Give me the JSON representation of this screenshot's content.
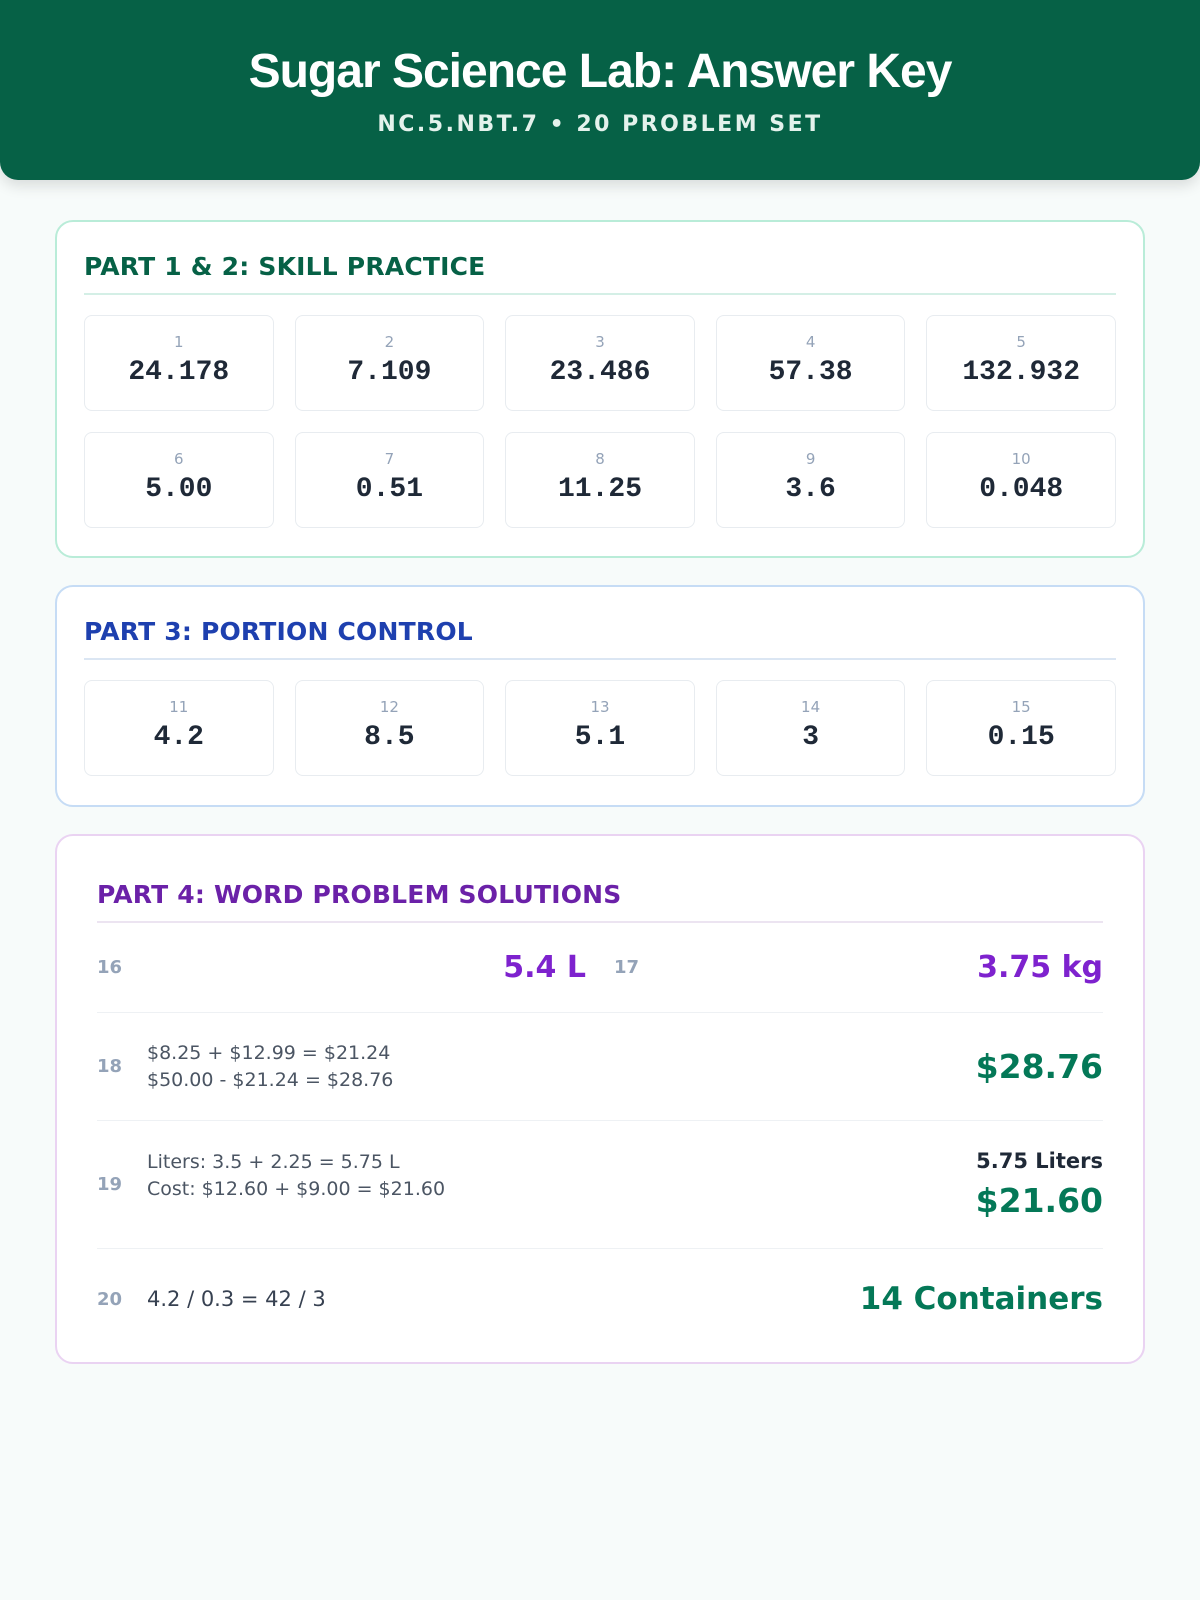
{
  "header": {
    "title": "Sugar Science Lab: Answer Key",
    "subtitle": "NC.5.NBT.7 • 20 PROBLEM SET"
  },
  "part12": {
    "title": "PART 1 & 2: SKILL PRACTICE",
    "items": [
      {
        "num": "1",
        "answer": "24.178"
      },
      {
        "num": "2",
        "answer": "7.109"
      },
      {
        "num": "3",
        "answer": "23.486"
      },
      {
        "num": "4",
        "answer": "57.38"
      },
      {
        "num": "5",
        "answer": "132.932"
      },
      {
        "num": "6",
        "answer": "5.00"
      },
      {
        "num": "7",
        "answer": "0.51"
      },
      {
        "num": "8",
        "answer": "11.25"
      },
      {
        "num": "9",
        "answer": "3.6"
      },
      {
        "num": "10",
        "answer": "0.048"
      }
    ]
  },
  "part3": {
    "title": "PART 3: PORTION CONTROL",
    "items": [
      {
        "num": "11",
        "answer": "4.2"
      },
      {
        "num": "12",
        "answer": "8.5"
      },
      {
        "num": "13",
        "answer": "5.1"
      },
      {
        "num": "14",
        "answer": "3"
      },
      {
        "num": "15",
        "answer": "0.15"
      }
    ]
  },
  "part4": {
    "title": "PART 4: WORD PROBLEM SOLUTIONS",
    "p16": {
      "num": "16",
      "answer": "5.4 L"
    },
    "p17": {
      "num": "17",
      "answer": "3.75 kg"
    },
    "p18": {
      "num": "18",
      "work1": "$8.25 + $12.99 = $21.24",
      "work2": "$50.00 - $21.24 = $28.76",
      "answer": "$28.76"
    },
    "p19": {
      "num": "19",
      "work1": "Liters: 3.5 + 2.25 = 5.75 L",
      "work2": "Cost: $12.60 + $9.00 = $21.60",
      "answer_liters": "5.75 Liters",
      "answer_cost": "$21.60"
    },
    "p20": {
      "num": "20",
      "work": "4.2 / 0.3 = 42 / 3",
      "answer": "14 Containers"
    }
  }
}
